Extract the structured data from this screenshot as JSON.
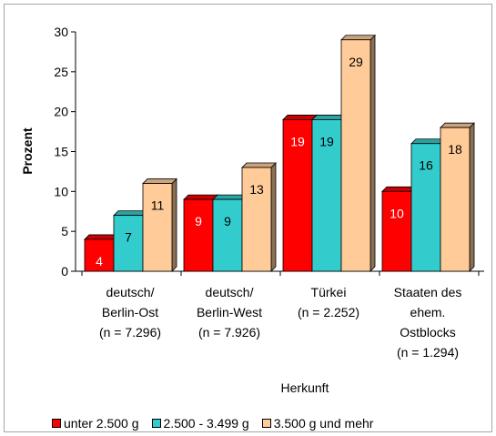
{
  "chart_data": {
    "type": "bar",
    "ylabel": "Prozent",
    "xlabel": "Herkunft",
    "ylim": [
      0,
      30
    ],
    "yticks": [
      0,
      5,
      10,
      15,
      20,
      25,
      30
    ],
    "grid": false,
    "legend_position": "bottom",
    "categories": [
      [
        "deutsch/",
        "Berlin-Ost",
        "(n = 7.296)"
      ],
      [
        "deutsch/",
        "Berlin-West",
        "(n = 7.926)"
      ],
      [
        "Türkei",
        "(n = 2.252)"
      ],
      [
        "Staaten des",
        "ehem.",
        "Ostblocks",
        "(n = 1.294)"
      ]
    ],
    "series": [
      {
        "name": "unter 2.500 g",
        "values": [
          4,
          9,
          19,
          10
        ],
        "color": "#ff0000",
        "label_color": "#ffffff"
      },
      {
        "name": "2.500 - 3.499 g",
        "values": [
          7,
          9,
          19,
          16
        ],
        "color": "#33cccc",
        "label_color": "#000000"
      },
      {
        "name": "3.500 g und mehr",
        "values": [
          11,
          13,
          29,
          18
        ],
        "color": "#ffcc99",
        "label_color": "#000000"
      }
    ],
    "style": "3d-bars"
  }
}
